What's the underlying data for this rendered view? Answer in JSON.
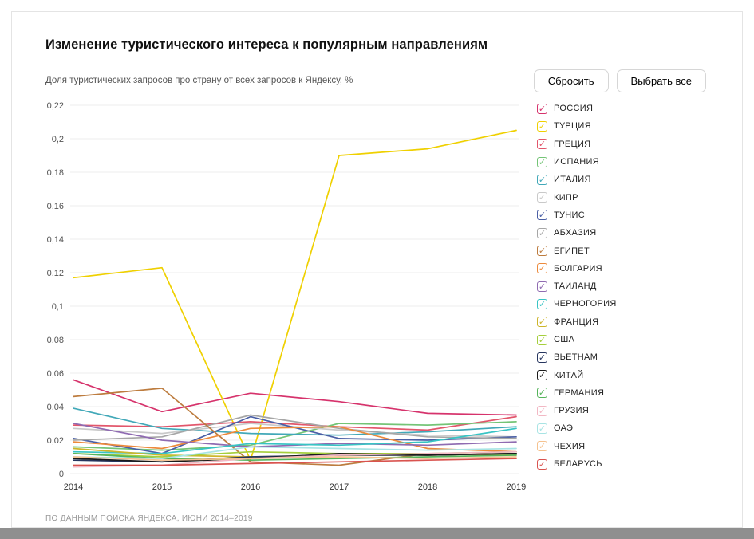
{
  "page": {
    "title": "Изменение туристического интереса к популярным направлениям",
    "subtitle": "Доля туристических запросов про страну от всех запросов к Яндексу, %",
    "footer": "ПО ДАННЫМ ПОИСКА ЯНДЕКСА, ИЮНИ 2014–2019"
  },
  "buttons": {
    "reset": "Сбросить",
    "select_all": "Выбрать все"
  },
  "chart_data": {
    "type": "line",
    "title": "Изменение туристического интереса к популярным направлениям",
    "xlabel": "",
    "ylabel": "Доля туристических запросов про страну от всех запросов к Яндексу, %",
    "x": [
      2014,
      2015,
      2016,
      2017,
      2018,
      2019
    ],
    "ylim": [
      0,
      0.22
    ],
    "grid": true,
    "legend_position": "right",
    "y_ticks": [
      0,
      0.02,
      0.04,
      0.06,
      0.08,
      0.1,
      0.12,
      0.14,
      0.16,
      0.18,
      0.2,
      0.22
    ],
    "y_tick_labels": [
      "0",
      "0,02",
      "0,04",
      "0,06",
      "0,08",
      "0,1",
      "0,12",
      "0,14",
      "0,16",
      "0,18",
      "0,2",
      "0,22"
    ],
    "series": [
      {
        "name": "РОССИЯ",
        "color": "#d6336c",
        "checked": true,
        "values": [
          0.056,
          0.037,
          0.048,
          0.043,
          0.036,
          0.035
        ]
      },
      {
        "name": "ТУРЦИЯ",
        "color": "#efd000",
        "checked": true,
        "values": [
          0.117,
          0.123,
          0.008,
          0.19,
          0.194,
          0.205
        ]
      },
      {
        "name": "ГРЕЦИЯ",
        "color": "#e2566b",
        "checked": true,
        "values": [
          0.029,
          0.028,
          0.031,
          0.028,
          0.026,
          0.034
        ]
      },
      {
        "name": "ИСПАНИЯ",
        "color": "#74c476",
        "checked": true,
        "values": [
          0.016,
          0.014,
          0.017,
          0.03,
          0.029,
          0.031
        ]
      },
      {
        "name": "ИТАЛИЯ",
        "color": "#41a8b8",
        "checked": true,
        "values": [
          0.039,
          0.027,
          0.024,
          0.023,
          0.025,
          0.028
        ]
      },
      {
        "name": "КИПР",
        "color": "#c9c9c9",
        "checked": true,
        "values": [
          0.027,
          0.024,
          0.03,
          0.026,
          0.023,
          0.022
        ]
      },
      {
        "name": "ТУНИС",
        "color": "#4a5fa5",
        "checked": true,
        "values": [
          0.021,
          0.012,
          0.034,
          0.021,
          0.02,
          0.022
        ]
      },
      {
        "name": "АБХАЗИЯ",
        "color": "#a6a6a6",
        "checked": true,
        "values": [
          0.02,
          0.022,
          0.035,
          0.027,
          0.022,
          0.021
        ]
      },
      {
        "name": "ЕГИПЕТ",
        "color": "#bd7c3f",
        "checked": true,
        "values": [
          0.046,
          0.051,
          0.007,
          0.005,
          0.012,
          0.011
        ]
      },
      {
        "name": "БОЛГАРИЯ",
        "color": "#ec8a3c",
        "checked": true,
        "values": [
          0.019,
          0.015,
          0.027,
          0.028,
          0.015,
          0.013
        ]
      },
      {
        "name": "ТАИЛАНД",
        "color": "#8f6bb1",
        "checked": true,
        "values": [
          0.03,
          0.02,
          0.016,
          0.018,
          0.017,
          0.019
        ]
      },
      {
        "name": "ЧЕРНОГОРИЯ",
        "color": "#38c4c4",
        "checked": true,
        "values": [
          0.013,
          0.012,
          0.018,
          0.017,
          0.019,
          0.027
        ]
      },
      {
        "name": "ФРАНЦИЯ",
        "color": "#cdb52b",
        "checked": true,
        "values": [
          0.015,
          0.011,
          0.01,
          0.011,
          0.011,
          0.012
        ]
      },
      {
        "name": "США",
        "color": "#a5cf3c",
        "checked": true,
        "values": [
          0.012,
          0.01,
          0.013,
          0.012,
          0.012,
          0.013
        ]
      },
      {
        "name": "ВЬЕТНАМ",
        "color": "#26355f",
        "checked": true,
        "values": [
          0.008,
          0.007,
          0.01,
          0.011,
          0.011,
          0.012
        ]
      },
      {
        "name": "КИТАЙ",
        "color": "#1a1a1a",
        "checked": true,
        "values": [
          0.009,
          0.007,
          0.009,
          0.012,
          0.011,
          0.012
        ]
      },
      {
        "name": "ГЕРМАНИЯ",
        "color": "#55b45a",
        "checked": true,
        "values": [
          0.012,
          0.009,
          0.008,
          0.009,
          0.01,
          0.011
        ]
      },
      {
        "name": "ГРУЗИЯ",
        "color": "#f2b8c4",
        "checked": true,
        "values": [
          0.004,
          0.005,
          0.009,
          0.011,
          0.012,
          0.013
        ]
      },
      {
        "name": "ОАЭ",
        "color": "#a8e4e4",
        "checked": true,
        "values": [
          0.01,
          0.009,
          0.016,
          0.015,
          0.014,
          0.015
        ]
      },
      {
        "name": "ЧЕХИЯ",
        "color": "#f5c28f",
        "checked": true,
        "values": [
          0.01,
          0.008,
          0.009,
          0.01,
          0.009,
          0.01
        ]
      },
      {
        "name": "БЕЛАРУСЬ",
        "color": "#d9534f",
        "checked": true,
        "values": [
          0.005,
          0.005,
          0.006,
          0.007,
          0.008,
          0.009
        ]
      }
    ]
  }
}
